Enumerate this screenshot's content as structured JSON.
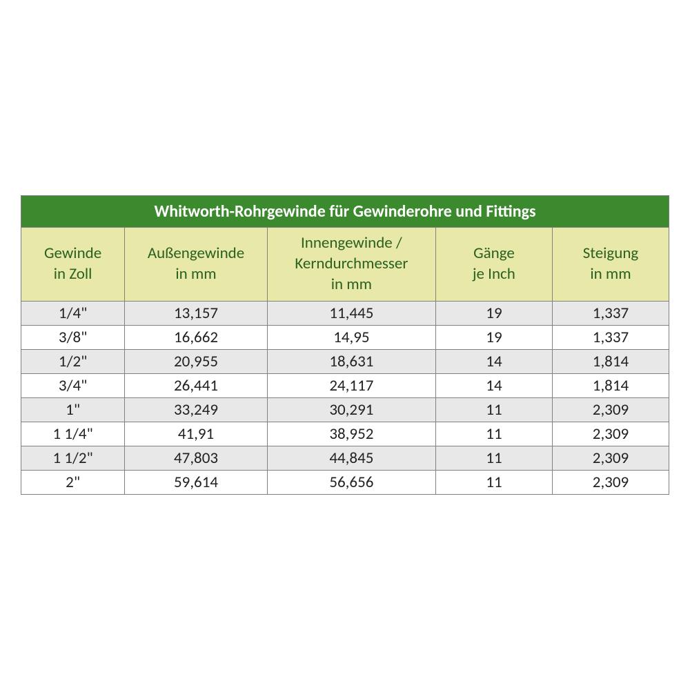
{
  "table": {
    "title": "Whitworth-Rohrgewinde für Gewinderohre und Fittings",
    "title_bg": "#3c8a2e",
    "title_color": "#ffffff",
    "title_fontsize": 24,
    "header_bg": "#e8e8a8",
    "header_color": "#2a6020",
    "header_fontsize": 23,
    "border_color": "#808080",
    "row_odd_bg": "#e8e8e8",
    "row_even_bg": "#ffffff",
    "cell_fontsize": 23,
    "cell_color": "#222222",
    "columns": [
      {
        "label": "Gewinde\nin Zoll",
        "width_pct": 16
      },
      {
        "label": "Außengewinde\nin mm",
        "width_pct": 22
      },
      {
        "label": "Innengewinde /\nKerndurchmesser\nin mm",
        "width_pct": 26
      },
      {
        "label": "Gänge\nje Inch",
        "width_pct": 18
      },
      {
        "label": "Steigung\nin mm",
        "width_pct": 18
      }
    ],
    "rows": [
      [
        "1/4\"",
        "13,157",
        "11,445",
        "19",
        "1,337"
      ],
      [
        "3/8\"",
        "16,662",
        "14,95",
        "19",
        "1,337"
      ],
      [
        "1/2\"",
        "20,955",
        "18,631",
        "14",
        "1,814"
      ],
      [
        "3/4\"",
        "26,441",
        "24,117",
        "14",
        "1,814"
      ],
      [
        "1\"",
        "33,249",
        "30,291",
        "11",
        "2,309"
      ],
      [
        "1 1/4\"",
        "41,91",
        "38,952",
        "11",
        "2,309"
      ],
      [
        "1 1/2\"",
        "47,803",
        "44,845",
        "11",
        "2,309"
      ],
      [
        "2\"",
        "59,614",
        "56,656",
        "11",
        "2,309"
      ]
    ]
  }
}
